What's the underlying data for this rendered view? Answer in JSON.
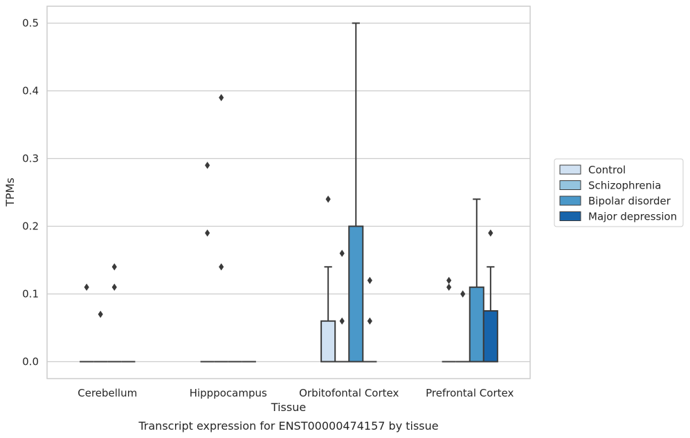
{
  "chart_data": {
    "type": "box",
    "title": "",
    "caption": "Transcript expression for ENST00000474157 by tissue",
    "xlabel": "Tissue",
    "ylabel": "TPMs",
    "ylim": [
      -0.025,
      0.525
    ],
    "yticks": [
      "0.0",
      "0.1",
      "0.2",
      "0.3",
      "0.4",
      "0.5"
    ],
    "grid": "horizontal",
    "legend_position": "right",
    "categories": [
      "Cerebellum",
      "Hipppocampus",
      "Orbitofontal Cortex",
      "Prefrontal Cortex"
    ],
    "series": [
      {
        "name": "Control",
        "color": "#d0e1f2",
        "boxes": [
          {
            "q1": 0,
            "median": 0,
            "q3": 0,
            "whisker_low": 0,
            "whisker_high": 0,
            "outliers": [
              0.11
            ]
          },
          {
            "q1": 0,
            "median": 0,
            "q3": 0,
            "whisker_low": 0,
            "whisker_high": 0,
            "outliers": [
              0.29,
              0.19
            ]
          },
          {
            "q1": 0,
            "median": 0,
            "q3": 0.06,
            "whisker_low": 0,
            "whisker_high": 0.14,
            "outliers": [
              0.24
            ]
          },
          {
            "q1": 0,
            "median": 0,
            "q3": 0,
            "whisker_low": 0,
            "whisker_high": 0,
            "outliers": [
              0.12,
              0.11
            ]
          }
        ]
      },
      {
        "name": "Schizophrenia",
        "color": "#94c4df",
        "boxes": [
          {
            "q1": 0,
            "median": 0,
            "q3": 0,
            "whisker_low": 0,
            "whisker_high": 0,
            "outliers": [
              0.07
            ]
          },
          {
            "q1": 0,
            "median": 0,
            "q3": 0,
            "whisker_low": 0,
            "whisker_high": 0,
            "outliers": [
              0.39,
              0.14
            ]
          },
          {
            "q1": 0,
            "median": 0,
            "q3": 0,
            "whisker_low": 0,
            "whisker_high": 0,
            "outliers": [
              0.16,
              0.06
            ]
          },
          {
            "q1": 0,
            "median": 0,
            "q3": 0,
            "whisker_low": 0,
            "whisker_high": 0,
            "outliers": [
              0.1
            ]
          }
        ]
      },
      {
        "name": "Bipolar disorder",
        "color": "#4a98c9",
        "boxes": [
          {
            "q1": 0,
            "median": 0,
            "q3": 0,
            "whisker_low": 0,
            "whisker_high": 0,
            "outliers": [
              0.14,
              0.11
            ]
          },
          {
            "q1": 0,
            "median": 0,
            "q3": 0,
            "whisker_low": 0,
            "whisker_high": 0,
            "outliers": []
          },
          {
            "q1": 0,
            "median": 0,
            "q3": 0.2,
            "whisker_low": 0,
            "whisker_high": 0.5,
            "outliers": []
          },
          {
            "q1": 0,
            "median": 0,
            "q3": 0.11,
            "whisker_low": 0,
            "whisker_high": 0.24,
            "outliers": []
          }
        ]
      },
      {
        "name": "Major depression",
        "color": "#1764ab",
        "boxes": [
          {
            "q1": 0,
            "median": 0,
            "q3": 0,
            "whisker_low": 0,
            "whisker_high": 0,
            "outliers": []
          },
          {
            "q1": 0,
            "median": 0,
            "q3": 0,
            "whisker_low": 0,
            "whisker_high": 0,
            "outliers": []
          },
          {
            "q1": 0,
            "median": 0,
            "q3": 0,
            "whisker_low": 0,
            "whisker_high": 0,
            "outliers": [
              0.12,
              0.06
            ]
          },
          {
            "q1": 0,
            "median": 0,
            "q3": 0.075,
            "whisker_low": 0,
            "whisker_high": 0.14,
            "outliers": [
              0.19
            ]
          }
        ]
      }
    ],
    "colors": {
      "line": "#3a3a3a",
      "grid": "#cccccc",
      "frame": "#cccccc"
    }
  }
}
